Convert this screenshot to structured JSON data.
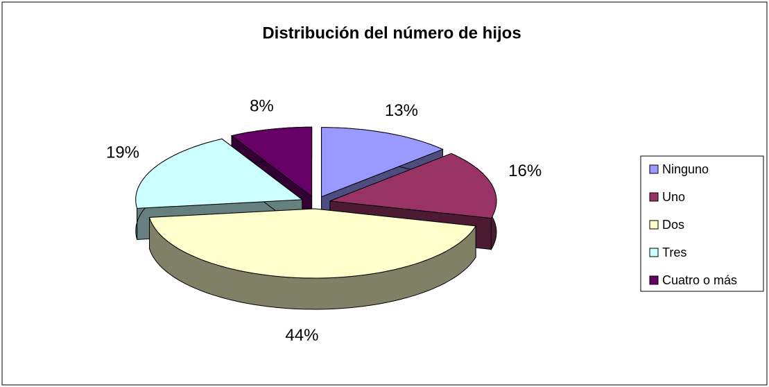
{
  "chart_data": {
    "type": "pie3d",
    "title": "Distribución del número de hijos",
    "categories": [
      "Ninguno",
      "Uno",
      "Dos",
      "Tres",
      "Cuatro o más"
    ],
    "values": [
      13,
      16,
      44,
      19,
      8
    ],
    "value_labels": [
      "13%",
      "16%",
      "44%",
      "19%",
      "8%"
    ],
    "colors": [
      "#9999ff",
      "#993366",
      "#ffffcc",
      "#ccffff",
      "#660066"
    ],
    "legend": "right"
  }
}
